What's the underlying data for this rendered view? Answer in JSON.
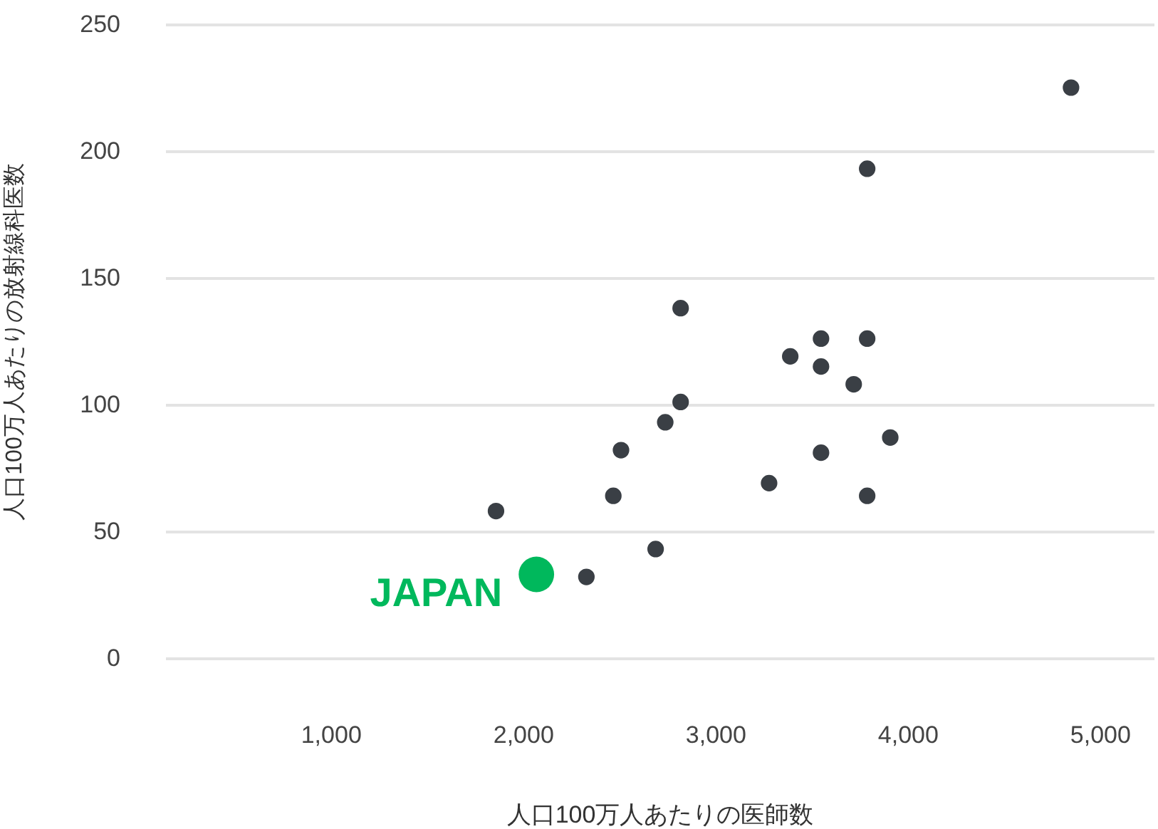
{
  "chart_data": {
    "type": "scatter",
    "xlabel": "人口100万人あたりの医師数",
    "ylabel": "人口100万人あたりの放射線科医数",
    "xlim": [
      140,
      5280
    ],
    "xticks": [
      {
        "value": 1000,
        "label": "1,000"
      },
      {
        "value": 2000,
        "label": "2,000"
      },
      {
        "value": 3000,
        "label": "3,000"
      },
      {
        "value": 4000,
        "label": "4,000"
      },
      {
        "value": 5000,
        "label": "5,000"
      }
    ],
    "ylim": [
      0,
      250
    ],
    "yticks": [
      0,
      50,
      100,
      150,
      200,
      250
    ],
    "grid": "y",
    "marker": "circle",
    "series": [
      {
        "color": "#3a3f45",
        "x": [
          1860,
          2330,
          2470,
          2510,
          2690,
          2740,
          2820,
          2820,
          3280,
          3390,
          3550,
          3550,
          3550,
          3720,
          3790,
          3790,
          3790,
          3910,
          4850
        ],
        "values": [
          58,
          32,
          64,
          82,
          43,
          93,
          101,
          138,
          69,
          119,
          126,
          115,
          81,
          108,
          193,
          126,
          64,
          87,
          225
        ]
      },
      {
        "name": "JAPAN",
        "color": "#00b85c",
        "x": [
          2070
        ],
        "values": [
          33
        ]
      }
    ]
  }
}
